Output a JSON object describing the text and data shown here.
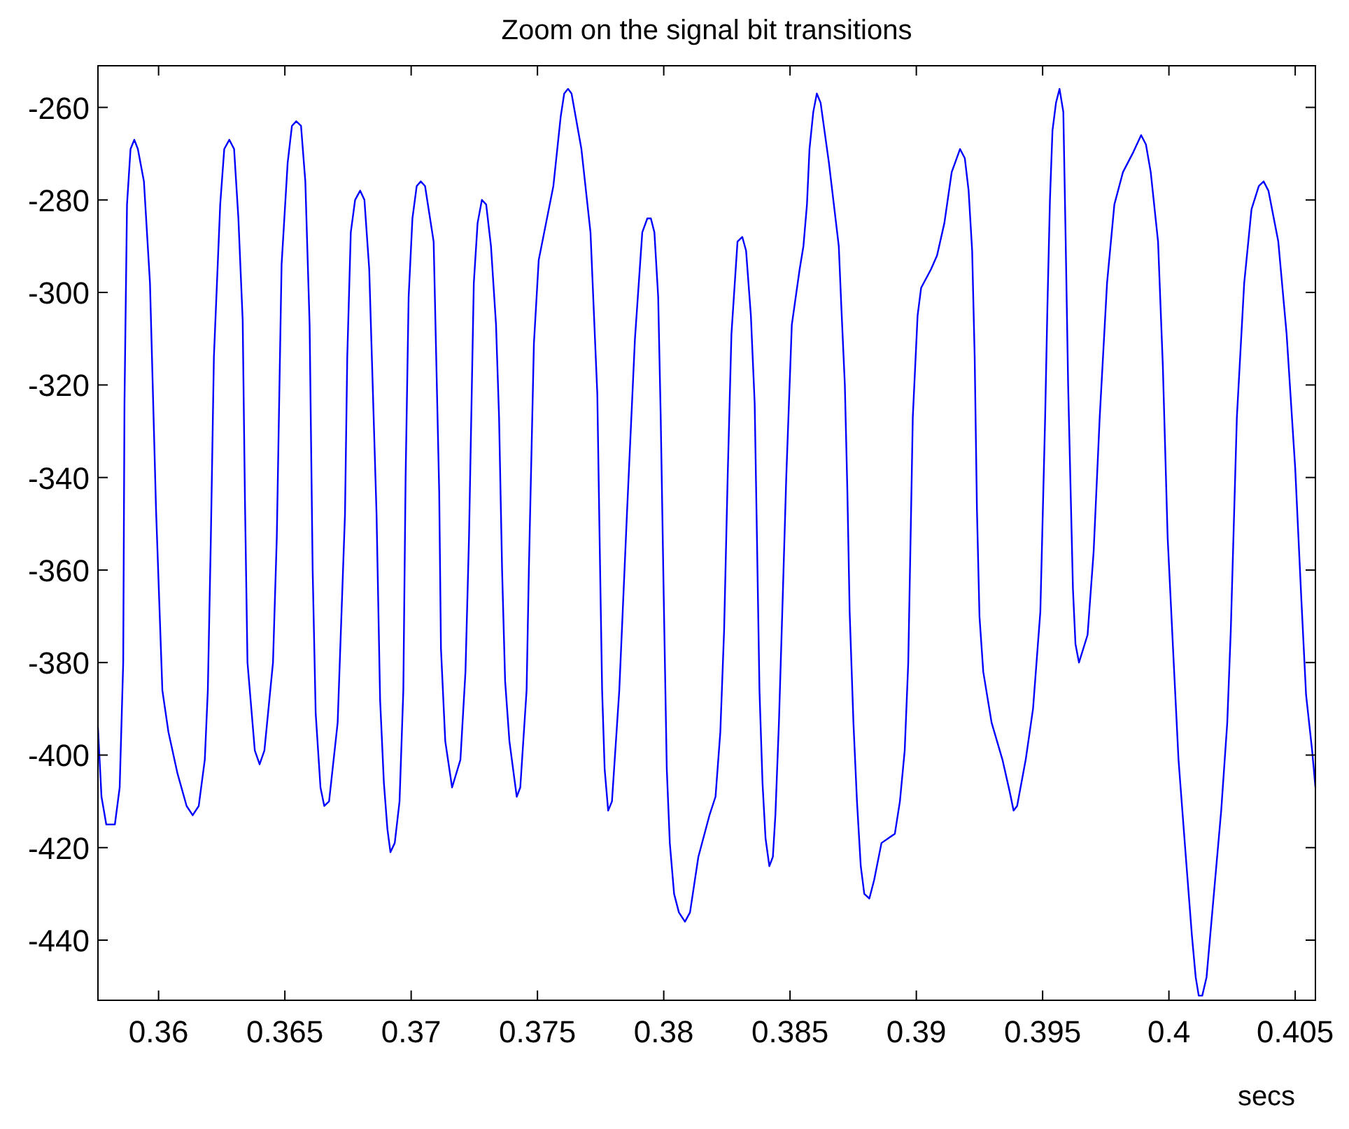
{
  "chart_data": {
    "type": "line",
    "title": "Zoom on the signal bit transitions",
    "xlabel": "secs",
    "xlim": [
      0.3576,
      0.4058
    ],
    "ylim": [
      -453,
      -251
    ],
    "xticks": [
      0.36,
      0.365,
      0.37,
      0.375,
      0.38,
      0.385,
      0.39,
      0.395,
      0.4,
      0.405
    ],
    "yticks": [
      -440,
      -420,
      -400,
      -380,
      -360,
      -340,
      -320,
      -300,
      -280,
      -260
    ],
    "grid": false,
    "marker": "none",
    "line_style": "solid",
    "series": [
      {
        "color": "#0000ff",
        "x": [
          0.3576,
          0.35774,
          0.35793,
          0.35827,
          0.35846,
          0.3586,
          0.35865,
          0.35875,
          0.35889,
          0.35904,
          0.35918,
          0.35942,
          0.35966,
          0.3599,
          0.36015,
          0.36039,
          0.36075,
          0.36111,
          0.36135,
          0.36159,
          0.36183,
          0.36195,
          0.36207,
          0.36219,
          0.36244,
          0.3626,
          0.3628,
          0.36299,
          0.36316,
          0.36333,
          0.36342,
          0.36352,
          0.36381,
          0.364,
          0.36419,
          0.36453,
          0.36468,
          0.36487,
          0.36511,
          0.36528,
          0.36545,
          0.36564,
          0.36581,
          0.36598,
          0.3661,
          0.36622,
          0.36641,
          0.36656,
          0.36675,
          0.36709,
          0.36738,
          0.36747,
          0.36761,
          0.36778,
          0.36798,
          0.36815,
          0.36834,
          0.36863,
          0.36877,
          0.36892,
          0.36906,
          0.36918,
          0.36935,
          0.36954,
          0.36969,
          0.36978,
          0.3699,
          0.37005,
          0.37022,
          0.37038,
          0.37055,
          0.37089,
          0.37111,
          0.37118,
          0.37135,
          0.37162,
          0.37195,
          0.37215,
          0.37229,
          0.37248,
          0.37263,
          0.3728,
          0.37297,
          0.37316,
          0.37336,
          0.37348,
          0.3736,
          0.37372,
          0.37389,
          0.37418,
          0.37432,
          0.37457,
          0.37466,
          0.37486,
          0.37505,
          0.37534,
          0.37563,
          0.37592,
          0.37606,
          0.37621,
          0.37635,
          0.37674,
          0.3771,
          0.37737,
          0.37746,
          0.37756,
          0.37766,
          0.3778,
          0.37795,
          0.37824,
          0.37855,
          0.37886,
          0.37915,
          0.37935,
          0.37949,
          0.37963,
          0.37978,
          0.37988,
          0.38,
          0.38012,
          0.38024,
          0.38041,
          0.3806,
          0.38084,
          0.38104,
          0.38137,
          0.38181,
          0.38205,
          0.38224,
          0.38239,
          0.38253,
          0.38268,
          0.38292,
          0.38311,
          0.38326,
          0.38345,
          0.3836,
          0.38369,
          0.38379,
          0.38391,
          0.38403,
          0.38418,
          0.38432,
          0.38442,
          0.38456,
          0.38471,
          0.38485,
          0.38507,
          0.38538,
          0.38553,
          0.38567,
          0.38577,
          0.38592,
          0.38606,
          0.38621,
          0.38654,
          0.38693,
          0.38703,
          0.38717,
          0.38727,
          0.38736,
          0.38751,
          0.38765,
          0.3878,
          0.38794,
          0.38814,
          0.38833,
          0.38862,
          0.38915,
          0.38935,
          0.38954,
          0.38968,
          0.38978,
          0.38986,
          0.39005,
          0.39019,
          0.39058,
          0.39082,
          0.39111,
          0.3914,
          0.39173,
          0.39192,
          0.39207,
          0.39221,
          0.39231,
          0.3924,
          0.3925,
          0.39265,
          0.39298,
          0.39341,
          0.3937,
          0.39385,
          0.39399,
          0.39433,
          0.39462,
          0.39491,
          0.3951,
          0.39519,
          0.39529,
          0.39539,
          0.39553,
          0.39567,
          0.39582,
          0.39591,
          0.39601,
          0.3962,
          0.3963,
          0.39644,
          0.39678,
          0.39702,
          0.39726,
          0.39755,
          0.39784,
          0.39818,
          0.39856,
          0.3989,
          0.39909,
          0.39928,
          0.39957,
          0.39976,
          0.39995,
          0.40019,
          0.40038,
          0.40067,
          0.40091,
          0.40106,
          0.40118,
          0.40132,
          0.40149,
          0.40178,
          0.40207,
          0.40231,
          0.40245,
          0.40269,
          0.40298,
          0.40327,
          0.40356,
          0.40375,
          0.40394,
          0.40433,
          0.40466,
          0.405,
          0.40524,
          0.40543,
          0.40567,
          0.4058
        ],
        "values": [
          -394,
          -409,
          -415,
          -415,
          -407,
          -380,
          -324,
          -281,
          -269,
          -267,
          -269,
          -276,
          -298,
          -347,
          -386,
          -395,
          -404,
          -411,
          -413,
          -411,
          -401,
          -386,
          -353,
          -314,
          -281,
          -269,
          -267,
          -269,
          -284,
          -306,
          -345,
          -380,
          -399,
          -402,
          -399,
          -380,
          -353,
          -294,
          -272,
          -264,
          -263,
          -264,
          -276,
          -307,
          -360,
          -391,
          -407,
          -411,
          -410,
          -393,
          -348,
          -314,
          -287,
          -280,
          -278,
          -280,
          -295,
          -348,
          -388,
          -406,
          -416,
          -421,
          -419,
          -410,
          -386,
          -340,
          -301,
          -284,
          -277,
          -276,
          -277,
          -289,
          -343,
          -377,
          -397,
          -407,
          -401,
          -382,
          -353,
          -298,
          -285,
          -280,
          -281,
          -290,
          -307,
          -327,
          -360,
          -384,
          -397,
          -409,
          -407,
          -386,
          -360,
          -311,
          -293,
          -285,
          -277,
          -262,
          -257,
          -256,
          -257,
          -269,
          -287,
          -322,
          -353,
          -386,
          -403,
          -412,
          -410,
          -386,
          -347,
          -310,
          -287,
          -284,
          -284,
          -287,
          -301,
          -327,
          -366,
          -403,
          -419,
          -430,
          -434,
          -436,
          -434,
          -422,
          -413,
          -409,
          -395,
          -373,
          -340,
          -309,
          -289,
          -288,
          -291,
          -305,
          -324,
          -353,
          -386,
          -406,
          -418,
          -424,
          -422,
          -413,
          -393,
          -366,
          -340,
          -307,
          -295,
          -290,
          -281,
          -269,
          -261,
          -257,
          -259,
          -272,
          -290,
          -303,
          -320,
          -343,
          -369,
          -393,
          -410,
          -424,
          -430,
          -431,
          -427,
          -419,
          -417,
          -410,
          -399,
          -380,
          -351,
          -327,
          -305,
          -299,
          -295,
          -292,
          -285,
          -274,
          -269,
          -271,
          -278,
          -291,
          -314,
          -347,
          -370,
          -382,
          -393,
          -401,
          -408,
          -412,
          -411,
          -401,
          -390,
          -369,
          -327,
          -303,
          -280,
          -265,
          -259,
          -256,
          -261,
          -288,
          -320,
          -364,
          -376,
          -380,
          -374,
          -356,
          -327,
          -298,
          -281,
          -274,
          -270,
          -266,
          -268,
          -274,
          -289,
          -316,
          -353,
          -380,
          -401,
          -422,
          -439,
          -448,
          -452,
          -452,
          -448,
          -430,
          -412,
          -393,
          -373,
          -327,
          -298,
          -282,
          -277,
          -276,
          -278,
          -289,
          -309,
          -338,
          -366,
          -387,
          -399,
          -407
        ]
      }
    ]
  }
}
